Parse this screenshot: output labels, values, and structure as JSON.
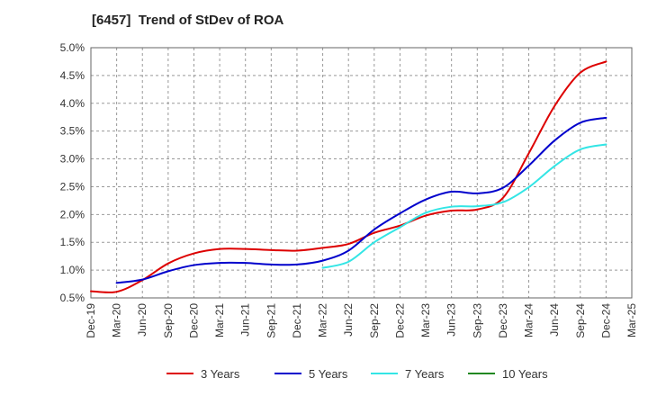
{
  "chart_data": {
    "type": "line",
    "title": "[6457]  Trend of StDev of ROA",
    "xlabel": "",
    "ylabel": "",
    "x_tick_labels": [
      "Dec-19",
      "Mar-20",
      "Jun-20",
      "Sep-20",
      "Dec-20",
      "Mar-21",
      "Jun-21",
      "Sep-21",
      "Dec-21",
      "Mar-22",
      "Jun-22",
      "Sep-22",
      "Dec-22",
      "Mar-23",
      "Jun-23",
      "Sep-23",
      "Dec-23",
      "Mar-24",
      "Jun-24",
      "Sep-24",
      "Dec-24",
      "Mar-25"
    ],
    "y_tick_labels": [
      "0.5%",
      "1.0%",
      "1.5%",
      "2.0%",
      "2.5%",
      "3.0%",
      "3.5%",
      "4.0%",
      "4.5%",
      "5.0%"
    ],
    "ylim": [
      0.5,
      5.0
    ],
    "grid": true,
    "legend_position": "bottom",
    "series": [
      {
        "name": "3 Years",
        "color": "#dd0000",
        "values": [
          0.62,
          0.61,
          0.82,
          1.12,
          1.3,
          1.38,
          1.38,
          1.36,
          1.35,
          1.4,
          1.47,
          1.67,
          1.8,
          1.98,
          2.07,
          2.09,
          2.3,
          3.1,
          3.95,
          4.55,
          4.75,
          null
        ]
      },
      {
        "name": "5 Years",
        "color": "#0000cc",
        "values": [
          null,
          0.77,
          0.83,
          0.98,
          1.09,
          1.13,
          1.13,
          1.1,
          1.1,
          1.17,
          1.35,
          1.73,
          2.02,
          2.27,
          2.41,
          2.38,
          2.48,
          2.88,
          3.33,
          3.65,
          3.74,
          null
        ]
      },
      {
        "name": "7 Years",
        "color": "#33e5e5",
        "values": [
          null,
          null,
          null,
          null,
          null,
          null,
          null,
          null,
          null,
          1.04,
          1.15,
          1.5,
          1.77,
          2.03,
          2.14,
          2.15,
          2.22,
          2.49,
          2.87,
          3.17,
          3.26,
          null
        ]
      },
      {
        "name": "10 Years",
        "color": "#228822",
        "values": [
          null,
          null,
          null,
          null,
          null,
          null,
          null,
          null,
          null,
          null,
          null,
          null,
          null,
          null,
          null,
          null,
          null,
          null,
          null,
          null,
          null,
          null
        ]
      }
    ]
  }
}
